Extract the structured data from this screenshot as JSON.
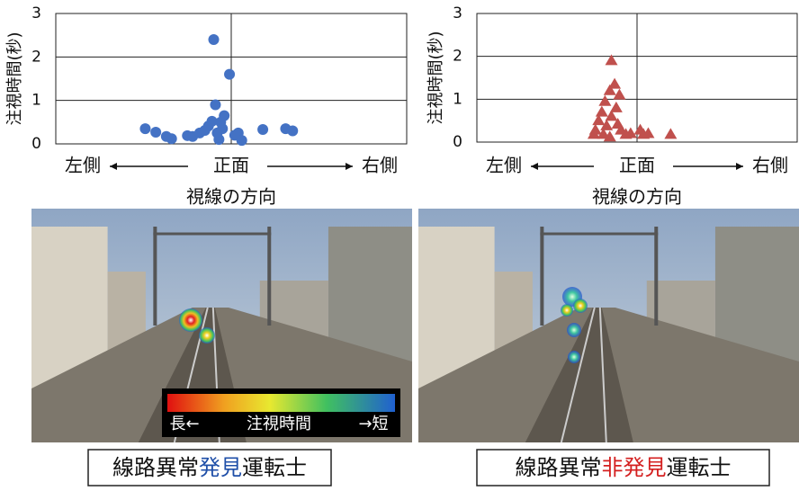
{
  "chart_data": [
    {
      "type": "scatter",
      "ylabel": "注視時間(秒)",
      "xlabel": "視線の方向",
      "direction_labels": [
        "左側",
        "正面",
        "右側"
      ],
      "xlim": [
        -1,
        1
      ],
      "ylim": [
        0,
        3
      ],
      "yticks": [
        0,
        1,
        2,
        3
      ],
      "grid": true,
      "series": [
        {
          "color": "#4472c4",
          "marker": "circle",
          "x": [
            -0.49,
            -0.43,
            -0.37,
            -0.34,
            -0.25,
            -0.22,
            -0.18,
            -0.15,
            -0.13,
            -0.11,
            -0.09,
            -0.06,
            -0.04,
            -0.08,
            -0.01,
            -0.1,
            0.02,
            0.04,
            0.06,
            0.18,
            0.31,
            0.35,
            -0.07,
            -0.05
          ],
          "values": [
            0.35,
            0.27,
            0.17,
            0.12,
            0.19,
            0.17,
            0.25,
            0.31,
            0.41,
            0.52,
            0.9,
            0.5,
            0.65,
            0.25,
            1.6,
            2.4,
            0.2,
            0.25,
            0.08,
            0.33,
            0.35,
            0.3,
            0.1,
            0.35
          ]
        }
      ]
    },
    {
      "type": "scatter",
      "ylabel": "注視時間(秒)",
      "xlabel": "視線の方向",
      "direction_labels": [
        "左側",
        "正面",
        "右側"
      ],
      "xlim": [
        -1,
        1
      ],
      "ylim": [
        0,
        3
      ],
      "yticks": [
        0,
        1,
        2,
        3
      ],
      "grid": true,
      "series": [
        {
          "color": "#c0504d",
          "marker": "triangle",
          "x": [
            -0.16,
            -0.14,
            -0.17,
            -0.2,
            -0.22,
            -0.24,
            -0.26,
            -0.27,
            -0.21,
            -0.19,
            -0.16,
            -0.13,
            -0.11,
            -0.1,
            -0.07,
            -0.04,
            0.02,
            0.04,
            0.07,
            0.21,
            -0.17,
            -0.12
          ],
          "values": [
            1.9,
            1.35,
            1.2,
            0.95,
            0.7,
            0.5,
            0.28,
            0.18,
            0.18,
            0.38,
            0.6,
            0.8,
            1.1,
            0.28,
            0.18,
            0.2,
            0.28,
            0.18,
            0.2,
            0.18,
            0.12,
            0.42
          ]
        }
      ]
    }
  ],
  "panels": [
    {
      "caption": [
        {
          "text": "線路異常",
          "color": "#111111"
        },
        {
          "text": "発見",
          "color": "#1f4fa8"
        },
        {
          "text": "運転士",
          "color": "#111111"
        }
      ],
      "colorbar": {
        "left": "長←",
        "center": "注視時間",
        "right": "→短"
      }
    },
    {
      "caption": [
        {
          "text": "線路異常",
          "color": "#111111"
        },
        {
          "text": "非発見",
          "color": "#d42020"
        },
        {
          "text": "運転士",
          "color": "#111111"
        }
      ]
    }
  ]
}
